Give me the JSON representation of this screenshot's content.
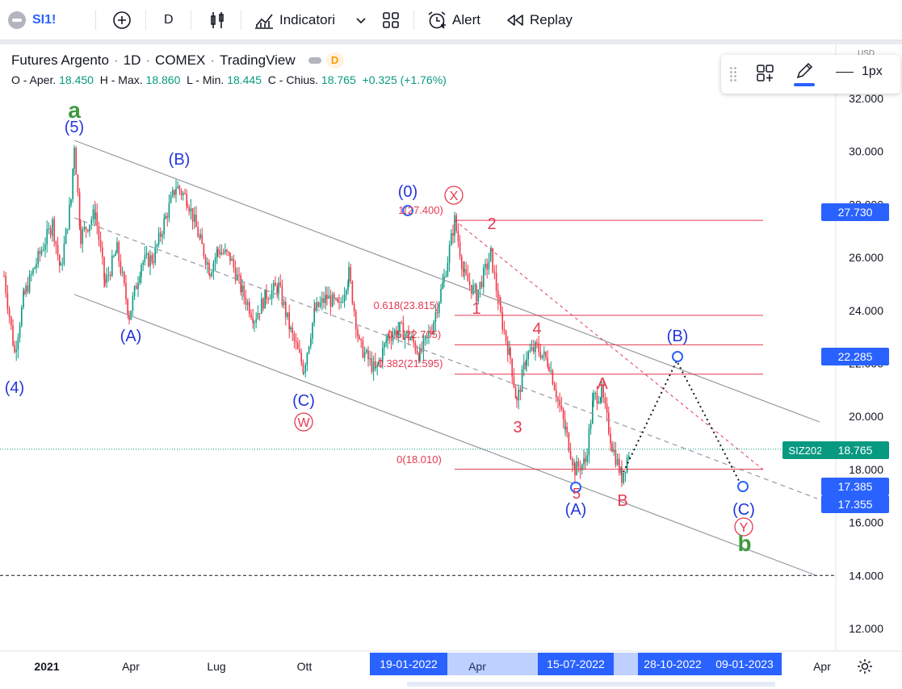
{
  "toolbar": {
    "symbol": "SI1!",
    "interval": "D",
    "indicators_label": "Indicatori",
    "alert_label": "Alert",
    "replay_label": "Replay"
  },
  "legend": {
    "title": "Futures Argento",
    "interval": "1D",
    "exchange": "COMEX",
    "source": "TradingView",
    "badge": "D",
    "open_label": "O - Aper.",
    "open": "18.450",
    "high_label": "H - Max.",
    "high": "18.860",
    "low_label": "L - Min.",
    "low": "18.445",
    "close_label": "C - Chius.",
    "close": "18.765",
    "change": "+0.325 (+1.76%)"
  },
  "float_toolbar": {
    "width_label": "1px"
  },
  "price_axis": {
    "currency": "USD",
    "ticks": [
      "32.000",
      "30.000",
      "28.000",
      "26.000",
      "24.000",
      "22.000",
      "20.000",
      "18.000",
      "16.000",
      "14.000",
      "12.000"
    ],
    "boxes": [
      {
        "id": "p1",
        "value": "27.730",
        "bg": "#2962ff",
        "fg": "#ffffff"
      },
      {
        "id": "p2",
        "value": "22.285",
        "bg": "#2962ff",
        "fg": "#ffffff"
      },
      {
        "id": "p3",
        "value": "18.765",
        "bg": "#089981",
        "fg": "#ffffff"
      },
      {
        "id": "p4",
        "value": "17.385",
        "bg": "#2962ff",
        "fg": "#ffffff"
      },
      {
        "id": "p5",
        "value": "17.355",
        "bg": "#2962ff",
        "fg": "#ffffff"
      }
    ],
    "symbol_tag": "SIZ2022"
  },
  "time_axis": {
    "labels": [
      "2021",
      "Apr",
      "Lug",
      "Ott",
      "Apr",
      "Apr"
    ],
    "highlight": [
      "19-01-2022",
      "15-07-2022",
      "28-10-2022",
      "09-01-2023"
    ]
  },
  "fib": {
    "l100": "1(27.400)",
    "l618": "0.618(23.815)",
    "l50": "0.5(22.705)",
    "l382": "0.382(21.595)",
    "l0": "0(18.010)"
  },
  "waves": {
    "a_big": "a",
    "b_big": "b",
    "w5": "(5)",
    "w4": "(4)",
    "wA1": "(A)",
    "wB1": "(B)",
    "wC1": "(C)",
    "w0": "(0)",
    "wA2": "(A)",
    "wB2": "(B)",
    "wC2": "(C)",
    "W": "W",
    "X": "X",
    "Y": "Y",
    "n1": "1",
    "n2": "2",
    "n3": "3",
    "n4": "4",
    "n5": "5",
    "A": "A",
    "B": "B"
  },
  "colors": {
    "wave_blue": "#2436d9",
    "wave_red": "#e53950",
    "wave_green": "#3d9a3d",
    "up": "#089981",
    "down": "#f23645",
    "accent": "#2962ff"
  }
}
